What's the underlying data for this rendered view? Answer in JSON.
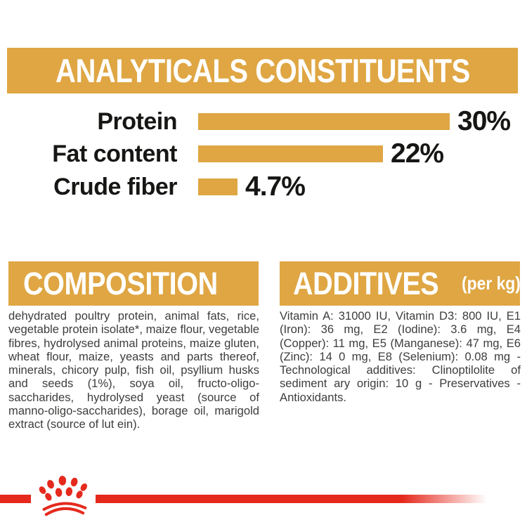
{
  "colors": {
    "gold": "#DFA643",
    "red": "#E5291D",
    "heading_text": "#FFFFFF",
    "chart_text": "#161614",
    "body_text": "#3D3D3C",
    "background": "#FFFFFF"
  },
  "analyticals": {
    "title": "ANALYTICALS CONSTITUENTS"
  },
  "chart_data": {
    "type": "bar",
    "orientation": "horizontal",
    "title": "ANALYTICALS CONSTITUENTS",
    "categories": [
      "Protein",
      "Fat content",
      "Crude fiber"
    ],
    "values": [
      30,
      22,
      4.7
    ],
    "value_labels": [
      "30%",
      "22%",
      "4.7%"
    ],
    "unit": "%",
    "xlim": [
      0,
      30
    ],
    "bar_color": "#DFA643",
    "grid": "off",
    "legend": "none"
  },
  "composition": {
    "title": "COMPOSITION",
    "body": "dehydrated poultry protein, animal fats, rice, vegetable protein isolate*, maize flour, vegetable fibres, hydrolysed animal proteins, maize gluten, wheat flour, maize, yeasts and parts thereof, minerals, chicory pulp, fish oil, psyllium husks and seeds (1%), soya oil, fructo-oligo-saccharides, hydrolysed yeast (source of manno-oligo-saccharides), borage oil, marigold extract (source of lut ein)."
  },
  "additives": {
    "title": "ADDITIVES",
    "subtitle": "(per kg)",
    "body": "Vitamin A: 31000 IU, Vitamin D3: 800 IU, E1 (Iron): 36 mg, E2 (Iodine): 3.6 mg, E4 (Copper): 11 mg, E5 (Manganese): 47 mg, E6 (Zinc): 14 0 mg, E8 (Selenium): 0.08 mg -Technological additives: Clinoptilolite of sediment ary origin: 10 g - Preservatives - Antioxidants."
  },
  "footer": {
    "logo_icon": "crown-paw-logo"
  }
}
